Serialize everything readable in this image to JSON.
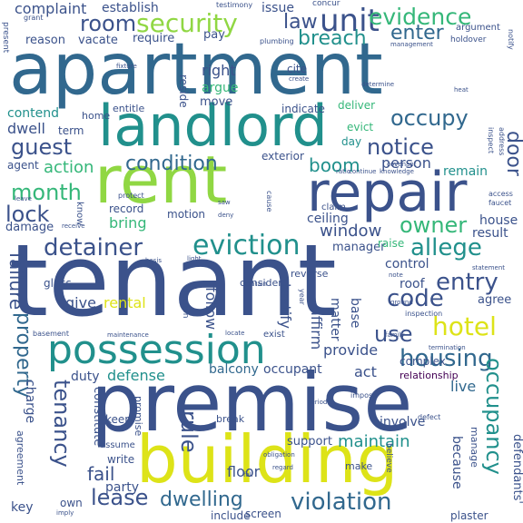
{
  "title": "",
  "palette": {
    "background": "#ffffff",
    "purple": "#440154",
    "indigo": "#3b528b",
    "blue": "#31688e",
    "teal": "#21908c",
    "green": "#35b779",
    "lime": "#90d743",
    "yellow": "#dde318"
  },
  "words": {
    "tenant": "tenant",
    "premise": "premise",
    "apartment": "apartment",
    "rent": "rent",
    "building": "building",
    "landlord": "landlord",
    "repair": "repair",
    "possession": "possession",
    "tenancy": "tenancy",
    "hotel": "hotel",
    "housing": "housing",
    "property": "property",
    "unit": "unit",
    "security": "security",
    "evidence": "evidence",
    "detainer": "detainer",
    "eviction": "eviction",
    "violation": "violation",
    "owner": "owner",
    "allege": "allege",
    "occupy": "occupy",
    "condition": "condition",
    "notice": "notice",
    "entry": "entry",
    "code": "code",
    "guest": "guest",
    "month": "month",
    "lock": "lock",
    "room": "room",
    "breach": "breach",
    "enter": "enter",
    "lease": "lease",
    "dwelling": "dwelling",
    "occupancy": "occupancy",
    "rule": "rule",
    "fail": "fail",
    "failure": "failure",
    "window": "window",
    "boom": "boom",
    "action": "action",
    "person": "person",
    "door": "door",
    "defense": "defense",
    "use": "use",
    "provide": "provide",
    "law": "law",
    "complaint": "complaint",
    "establish": "establish",
    "issue": "issue",
    "vacate": "vacate",
    "reason": "reason",
    "require": "require",
    "pay": "pay",
    "right": "right",
    "argue": "argue",
    "contend": "contend",
    "dwell": "dwell",
    "agent": "agent",
    "term": "term",
    "home": "home",
    "entitle": "entitle",
    "move": "move",
    "reside": "reside",
    "cite": "cite",
    "indicate": "indicate",
    "deliver": "deliver",
    "evict": "evict",
    "day": "day",
    "exterior": "exterior",
    "remain": "remain",
    "damage": "damage",
    "record": "record",
    "bring": "bring",
    "motion": "motion",
    "ceiling": "ceiling",
    "claim": "claim",
    "manager": "manager",
    "house": "house",
    "result": "result",
    "raise": "raise",
    "control": "control",
    "roof": "roof",
    "agree": "agree",
    "give": "give",
    "rental": "rental",
    "follow": "follow",
    "testify": "testify",
    "affirm": "affirm",
    "matter": "matter",
    "base": "base",
    "duty": "duty",
    "balcony": "balcony",
    "occupant": "occupant",
    "act": "act",
    "complex": "complex",
    "relationship": "relationship",
    "live": "live",
    "charge": "charge",
    "constitute": "constitute",
    "maintain": "maintain",
    "party": "party",
    "floor": "floor",
    "key": "key",
    "include": "include",
    "screen": "screen",
    "involve": "involve",
    "because": "because",
    "defendants": "defendants'",
    "agreement": "agreement",
    "support": "support",
    "make": "make",
    "plaster": "plaster",
    "consider": "consider",
    "own": "own",
    "manage": "manage",
    "testimony": "testimony",
    "concur": "concur",
    "grant": "grant",
    "present": "present",
    "argument": "argument",
    "notify": "notify",
    "holdover": "holdover",
    "management": "management",
    "plumbing": "plumbing",
    "fixture": "fixture",
    "create": "create",
    "determine": "determine",
    "covenant": "covenant",
    "knowledge": "knowledge",
    "faucet": "faucet",
    "access": "access",
    "protect": "protect",
    "deny": "deny",
    "glass": "glass",
    "section": "section",
    "reverse": "reverse",
    "basement": "basement",
    "maintenance": "maintenance",
    "exist": "exist",
    "inspection": "inspection",
    "termination": "termination",
    "statement": "statement",
    "keep": "keep",
    "write": "write",
    "break": "break",
    "impose": "impose",
    "promise": "promise",
    "assume": "assume",
    "believe": "believe",
    "defect": "defect",
    "period": "period",
    "regard": "regard",
    "obligation": "obligation",
    "contain": "contain",
    "locate": "locate",
    "light": "light",
    "address": "address",
    "heat": "heat",
    "know": "know",
    "receive": "receive",
    "basis": "basis",
    "inspect": "inspect",
    "fall": "fall",
    "cause": "cause",
    "year": "year",
    "note": "note",
    "ground": "ground",
    "family": "family",
    "imply": "imply",
    "leave": "leave",
    "ratio": "ratio",
    "continue": "continue",
    "saw": "saw"
  }
}
